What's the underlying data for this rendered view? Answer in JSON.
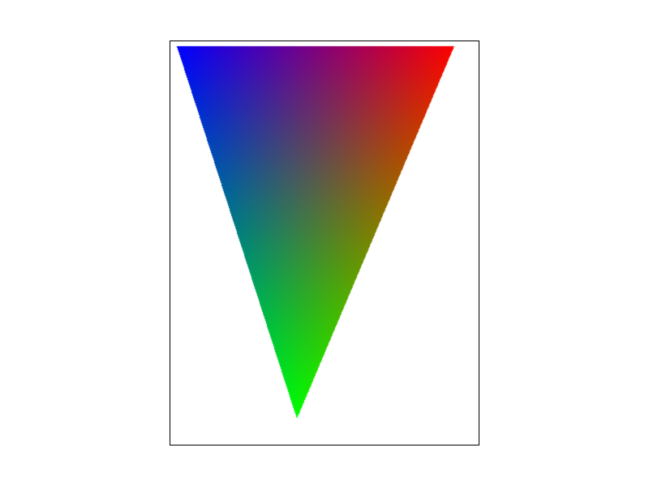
{
  "vertex_colors": {
    "top_left": "#0000ff",
    "top_right": "#ff0000",
    "bottom": "#00ff00"
  },
  "background": "#ffffff",
  "frame_border": "#000000"
}
